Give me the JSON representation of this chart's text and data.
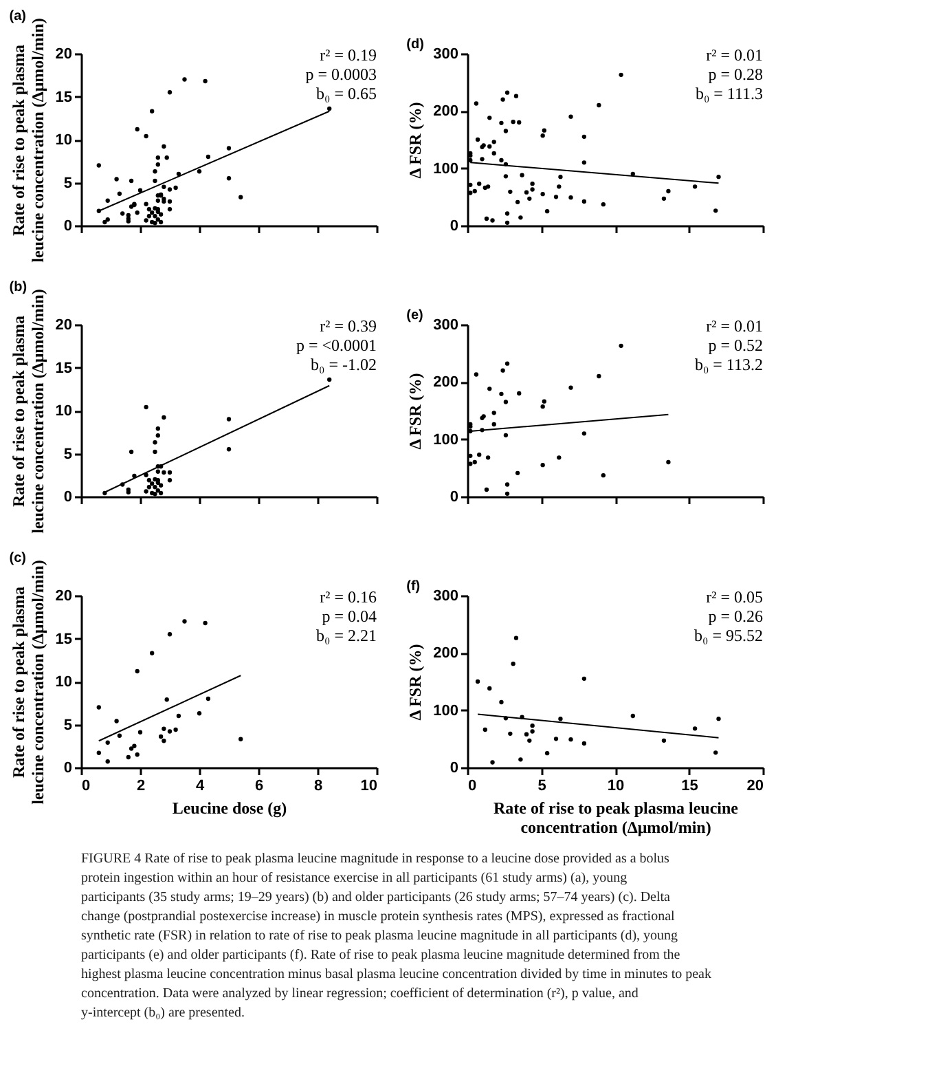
{
  "chart_data": [
    {
      "type": "scatter",
      "title": "(a)",
      "ylabel": "Rate of rise to peak plasma leucine concentration (Δμmol/min)",
      "xlim": [
        0,
        10
      ],
      "xticks": [
        0,
        2,
        4,
        6,
        8,
        10
      ],
      "ylim": [
        0,
        20
      ],
      "yticks": [
        0,
        5,
        10,
        15,
        20
      ],
      "tick_labels": "y",
      "grid": false,
      "series": [
        {
          "type": "scatter",
          "marker": "circle",
          "color": "#000000",
          "x": [
            0.8,
            1.4,
            1.6,
            1.6,
            1.7,
            1.8,
            2.2,
            2.2,
            2.4,
            2.4,
            2.3,
            2.5,
            2.5,
            2.2,
            2.5,
            2.6,
            2.6,
            2.6,
            2.6,
            2.7,
            2.6,
            2.6,
            2.7,
            2.7,
            2.8,
            2.8,
            3.0,
            3.0,
            5.0,
            5.0,
            8.4,
            2.3,
            2.5,
            2.6,
            2.5,
            0.6,
            0.6,
            0.9,
            0.9,
            1.2,
            1.3,
            1.6,
            1.8,
            1.7,
            1.9,
            1.9,
            2.0,
            2.4,
            2.7,
            2.8,
            2.8,
            2.9,
            3.0,
            3.0,
            3.2,
            3.3,
            3.5,
            4.0,
            4.2,
            4.3,
            5.4
          ],
          "values": [
            0.4,
            1.4,
            0.8,
            0.5,
            5.2,
            2.4,
            2.5,
            10.4,
            0.4,
            1.5,
            1.1,
            6.3,
            5.2,
            0.6,
            1.1,
            7.9,
            7.1,
            2.9,
            1.9,
            1.3,
            0.7,
            3.5,
            3.5,
            0.4,
            9.2,
            2.8,
            2.8,
            1.9,
            5.5,
            9.0,
            13.6,
            1.9,
            0.3,
            1.6,
            2.0,
            7.0,
            1.7,
            2.9,
            0.7,
            5.4,
            3.7,
            1.2,
            2.5,
            2.2,
            1.5,
            11.2,
            4.1,
            13.3,
            3.6,
            4.5,
            3.1,
            7.9,
            4.2,
            15.5,
            4.4,
            6.0,
            17.0,
            6.3,
            16.8,
            8.0,
            3.3
          ]
        },
        {
          "type": "line",
          "color": "#000000",
          "x": [
            0.6,
            8.4
          ],
          "values": [
            1.7,
            13.3
          ]
        }
      ],
      "annotations": [
        "r² = 0.19",
        "p = 0.0003",
        "b₀ = 0.65"
      ]
    },
    {
      "type": "scatter",
      "title": "(d)",
      "ylabel": "Δ FSR (%)",
      "xlim": [
        0,
        20
      ],
      "xticks": [
        0,
        5,
        10,
        15,
        20
      ],
      "ylim": [
        0,
        300
      ],
      "yticks": [
        0,
        100,
        200,
        300
      ],
      "tick_labels": "y",
      "grid": false,
      "series": [
        {
          "type": "scatter",
          "marker": "circle",
          "color": "#000000",
          "x": [
            0.2,
            0.2,
            0.2,
            0.2,
            0.2,
            0.5,
            0.6,
            0.8,
            1.0,
            1.0,
            1.1,
            1.3,
            1.4,
            1.5,
            1.8,
            1.8,
            2.3,
            2.4,
            2.6,
            2.6,
            2.7,
            2.7,
            2.7,
            3.4,
            3.5,
            5.1,
            5.1,
            5.2,
            6.2,
            7.0,
            7.9,
            8.9,
            9.2,
            10.4,
            13.6,
            0.7,
            1.2,
            1.5,
            1.7,
            2.3,
            2.6,
            2.9,
            3.1,
            3.3,
            3.6,
            3.7,
            4.0,
            4.2,
            4.4,
            4.4,
            5.4,
            6.0,
            6.3,
            7.0,
            7.9,
            7.9,
            11.2,
            13.3,
            15.4,
            16.8,
            17.0
          ],
          "values": [
            57,
            71,
            114,
            122,
            126,
            60,
            213,
            73,
            116,
            137,
            140,
            12,
            68,
            188,
            126,
            146,
            179,
            220,
            107,
            165,
            232,
            21,
            5,
            41,
            180,
            55,
            157,
            166,
            68,
            190,
            110,
            210,
            37,
            263,
            60,
            150,
            66,
            138,
            9,
            114,
            86,
            59,
            181,
            226,
            14,
            88,
            58,
            47,
            73,
            63,
            25,
            50,
            85,
            49,
            42,
            155,
            90,
            47,
            68,
            26,
            85
          ]
        },
        {
          "type": "line",
          "color": "#000000",
          "x": [
            0.2,
            17.0
          ],
          "values": [
            110,
            74
          ]
        }
      ],
      "annotations": [
        "r² = 0.01",
        "p = 0.28",
        "b₀ = 111.3"
      ]
    },
    {
      "type": "scatter",
      "title": "(b)",
      "ylabel": "Rate of rise to peak plasma leucine concentration (Δμmol/min)",
      "xlim": [
        0,
        10
      ],
      "xticks": [
        0,
        2,
        4,
        6,
        8,
        10
      ],
      "ylim": [
        0,
        20
      ],
      "yticks": [
        0,
        5,
        10,
        15,
        20
      ],
      "tick_labels": "y",
      "grid": false,
      "series": [
        {
          "type": "scatter",
          "marker": "circle",
          "color": "#000000",
          "x": [
            0.8,
            1.4,
            1.6,
            1.6,
            1.7,
            1.8,
            2.2,
            2.2,
            2.4,
            2.4,
            2.3,
            2.5,
            2.5,
            2.2,
            2.5,
            2.6,
            2.6,
            2.6,
            2.6,
            2.7,
            2.6,
            2.6,
            2.7,
            2.7,
            2.8,
            2.8,
            3.0,
            3.0,
            5.0,
            5.0,
            8.4,
            2.3,
            2.5,
            2.6,
            2.5
          ],
          "values": [
            0.4,
            1.4,
            0.8,
            0.5,
            5.2,
            2.4,
            2.5,
            10.4,
            0.4,
            1.5,
            1.1,
            6.3,
            5.2,
            0.6,
            1.1,
            7.9,
            7.1,
            2.9,
            1.9,
            1.3,
            0.7,
            3.5,
            3.5,
            0.4,
            9.2,
            2.8,
            2.8,
            1.9,
            5.5,
            9.0,
            13.6,
            1.9,
            0.3,
            1.6,
            2.0
          ]
        },
        {
          "type": "line",
          "color": "#000000",
          "x": [
            0.8,
            8.4
          ],
          "values": [
            0.5,
            12.9
          ]
        }
      ],
      "annotations": [
        "r² = 0.39",
        "p = <0.0001",
        "b₀ = -1.02"
      ]
    },
    {
      "type": "scatter",
      "title": "(e)",
      "ylabel": "Δ FSR (%)",
      "xlim": [
        0,
        20
      ],
      "xticks": [
        0,
        5,
        10,
        15,
        20
      ],
      "ylim": [
        0,
        300
      ],
      "yticks": [
        0,
        100,
        200,
        300
      ],
      "tick_labels": "y",
      "grid": false,
      "series": [
        {
          "type": "scatter",
          "marker": "circle",
          "color": "#000000",
          "x": [
            0.2,
            0.2,
            0.2,
            0.2,
            0.2,
            0.5,
            0.6,
            0.8,
            1.0,
            1.0,
            1.1,
            1.3,
            1.4,
            1.5,
            1.8,
            1.8,
            2.3,
            2.4,
            2.6,
            2.6,
            2.7,
            2.7,
            2.7,
            3.4,
            3.5,
            5.1,
            5.1,
            5.2,
            6.2,
            7.0,
            7.9,
            8.9,
            9.2,
            10.4,
            13.6
          ],
          "values": [
            57,
            71,
            114,
            122,
            126,
            60,
            213,
            73,
            116,
            137,
            140,
            12,
            68,
            188,
            126,
            146,
            179,
            220,
            107,
            165,
            232,
            21,
            5,
            41,
            180,
            55,
            157,
            166,
            68,
            190,
            110,
            210,
            37,
            263,
            60
          ]
        },
        {
          "type": "line",
          "color": "#000000",
          "x": [
            0.2,
            13.6
          ],
          "values": [
            114,
            143
          ]
        }
      ],
      "annotations": [
        "r² = 0.01",
        "p = 0.52",
        "b₀ = 113.2"
      ]
    },
    {
      "type": "scatter",
      "title": "(c)",
      "ylabel": "Rate of rise to peak plasma leucine concentration (Δμmol/min)",
      "xlabel": "Leucine dose (g)",
      "xlim": [
        0,
        10
      ],
      "xticks": [
        0,
        2,
        4,
        6,
        8,
        10
      ],
      "ylim": [
        0,
        20
      ],
      "yticks": [
        0,
        5,
        10,
        15,
        20
      ],
      "grid": false,
      "series": [
        {
          "type": "scatter",
          "marker": "circle",
          "color": "#000000",
          "x": [
            0.6,
            0.6,
            0.9,
            0.9,
            1.2,
            1.3,
            1.6,
            1.8,
            1.7,
            1.9,
            1.9,
            2.0,
            2.4,
            2.7,
            2.8,
            2.8,
            2.9,
            3.0,
            3.0,
            3.2,
            3.3,
            3.5,
            4.0,
            4.2,
            4.3,
            5.4
          ],
          "values": [
            7.0,
            1.7,
            2.9,
            0.7,
            5.4,
            3.7,
            1.2,
            2.5,
            2.2,
            1.5,
            11.2,
            4.1,
            13.3,
            3.6,
            4.5,
            3.1,
            7.9,
            4.2,
            15.5,
            4.4,
            6.0,
            17.0,
            6.3,
            16.8,
            8.0,
            3.3
          ]
        },
        {
          "type": "line",
          "color": "#000000",
          "x": [
            0.6,
            5.4
          ],
          "values": [
            3.1,
            10.7
          ]
        }
      ],
      "annotations": [
        "r² = 0.16",
        "p = 0.04",
        "b₀ = 2.21"
      ]
    },
    {
      "type": "scatter",
      "title": "(f)",
      "ylabel": "Δ FSR (%)",
      "xlabel": "Rate of rise to peak plasma leucine concentration (Δμmol/min)",
      "xlim": [
        0,
        20
      ],
      "xticks": [
        0,
        5,
        10,
        15,
        20
      ],
      "ylim": [
        0,
        300
      ],
      "yticks": [
        0,
        100,
        200,
        300
      ],
      "grid": false,
      "series": [
        {
          "type": "scatter",
          "marker": "circle",
          "color": "#000000",
          "x": [
            0.7,
            1.2,
            1.5,
            1.7,
            2.3,
            2.6,
            2.9,
            3.1,
            3.3,
            3.6,
            3.7,
            4.0,
            4.2,
            4.4,
            4.4,
            5.4,
            6.0,
            6.3,
            7.0,
            7.9,
            7.9,
            11.2,
            13.3,
            15.4,
            16.8,
            17.0
          ],
          "values": [
            150,
            66,
            138,
            9,
            114,
            86,
            59,
            181,
            226,
            14,
            88,
            58,
            47,
            73,
            63,
            25,
            50,
            85,
            49,
            42,
            155,
            90,
            47,
            68,
            26,
            85
          ]
        },
        {
          "type": "line",
          "color": "#000000",
          "x": [
            0.7,
            17.0
          ],
          "values": [
            93,
            52
          ]
        }
      ],
      "annotations": [
        "r² = 0.05",
        "p = 0.26",
        "b₀ = 95.52"
      ]
    },
    {
      "type": "other",
      "annotations": [
        "FIGURE 4  Rate of rise to peak plasma leucine magnitude in response to a leucine dose provided as a bolus protein ingestion within an hour of resistance exercise in all participants (61 study arms) (a), young participants (35 study arms; 19–29 years) (b) and older participants (26 study arms; 57–74 years) (c). Delta change (postprandial postexercise increase) in muscle protein synthesis rates (MPS), expressed as fractional synthetic rate (FSR) in relation to rate of rise to peak plasma leucine magnitude in all participants (d), young participants (e) and older participants (f). Rate of rise to peak plasma leucine magnitude determined from the highest plasma leucine concentration minus basal plasma leucine concentration divided by time in minutes to peak concentration. Data were analyzed by linear regression; coefficient of determination (r²), p value, and y-intercept (b₀) are presented."
      ]
    }
  ]
}
